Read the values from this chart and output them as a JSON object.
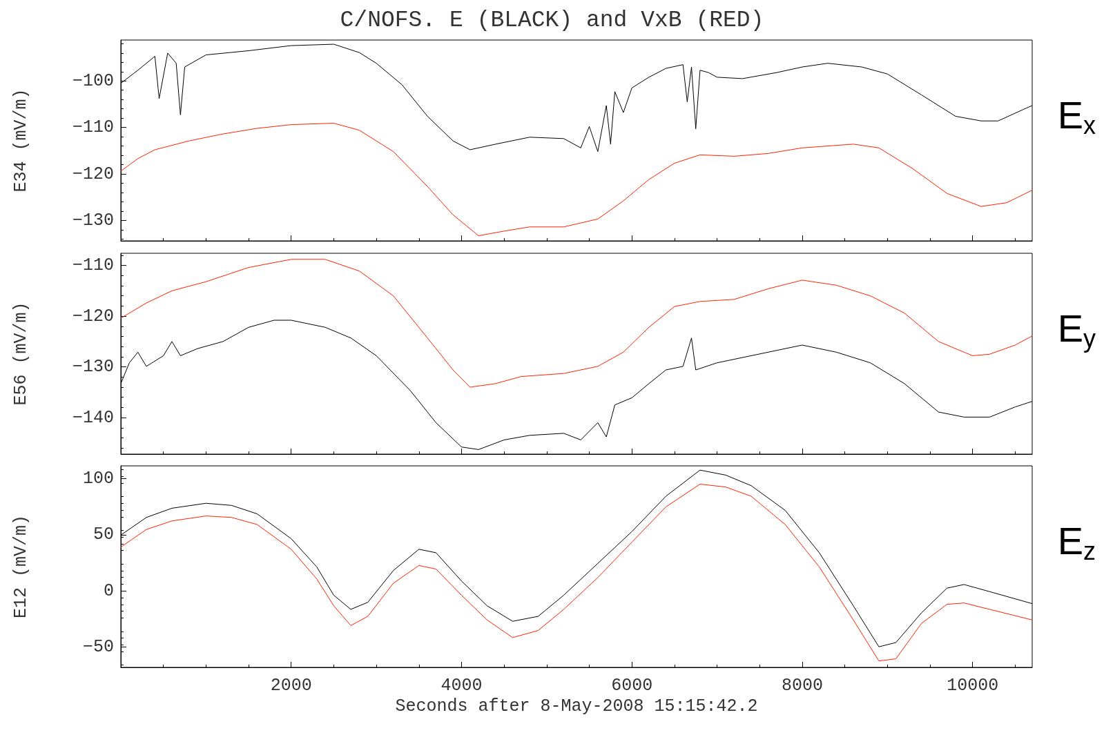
{
  "chart_data": [
    {
      "type": "line",
      "title": "C/NOFS. E (BLACK) and VxB (RED)",
      "ylabel": "E34 (mV/m)",
      "annotations": [
        "E$_{x}$"
      ],
      "xlim": [
        0,
        10700
      ],
      "xticks": [
        2000,
        4000,
        6000,
        8000,
        10000
      ],
      "ylim": [
        -134.4,
        -91.2
      ],
      "yticks": [
        -100,
        -110,
        -120,
        -130
      ],
      "tick_labels": "y",
      "marker": "none",
      "series": [
        {
          "color": "#000000",
          "x": [
            0,
            200,
            400,
            450,
            550,
            650,
            700,
            750,
            1000,
            1500,
            2000,
            2500,
            2800,
            3000,
            3300,
            3600,
            3900,
            4100,
            4400,
            4800,
            5200,
            5400,
            5500,
            5600,
            5700,
            5750,
            5800,
            5900,
            6000,
            6200,
            6400,
            6600,
            6650,
            6700,
            6750,
            6800,
            6900,
            7000,
            7300,
            7700,
            8000,
            8300,
            8700,
            9000,
            9400,
            9800,
            10100,
            10300,
            10600,
            10700
          ],
          "values": [
            -100.5,
            -97.7,
            -94.7,
            -103.8,
            -94,
            -96.2,
            -107.3,
            -97,
            -94.4,
            -93.5,
            -92.4,
            -92.1,
            -93.9,
            -96.2,
            -100.8,
            -107.6,
            -112.9,
            -114.8,
            -113.6,
            -112.1,
            -112.4,
            -114.4,
            -109.8,
            -115.2,
            -105.3,
            -113.6,
            -102.3,
            -106.8,
            -101.5,
            -99.2,
            -97.3,
            -96.5,
            -104.5,
            -97,
            -110.3,
            -97.7,
            -98.2,
            -99.2,
            -99.5,
            -98.2,
            -97,
            -96.2,
            -97,
            -98.5,
            -103,
            -107.6,
            -108.6,
            -108.6,
            -106.1,
            -105.3
          ]
        },
        {
          "color": "#ff2200",
          "x": [
            0,
            200,
            400,
            800,
            1200,
            1600,
            2000,
            2500,
            2800,
            3200,
            3600,
            3900,
            4200,
            4500,
            4800,
            5200,
            5600,
            5900,
            6200,
            6500,
            6800,
            7200,
            7600,
            8000,
            8600,
            8900,
            9300,
            9700,
            10100,
            10400,
            10700
          ],
          "values": [
            -119.4,
            -116.7,
            -114.8,
            -112.9,
            -111.4,
            -110.2,
            -109.4,
            -109.1,
            -110.6,
            -115.2,
            -122.7,
            -128.8,
            -133.3,
            -132.3,
            -131.4,
            -131.4,
            -129.7,
            -125.8,
            -121.2,
            -117.7,
            -115.9,
            -116.2,
            -115.6,
            -114.4,
            -113.6,
            -114.4,
            -118.9,
            -124.2,
            -127,
            -126.2,
            -123.5
          ]
        }
      ]
    },
    {
      "type": "line",
      "ylabel": "E56 (mV/m)",
      "annotations": [
        "E$_{y}$"
      ],
      "xlim": [
        0,
        10700
      ],
      "xticks": [
        2000,
        4000,
        6000,
        8000,
        10000
      ],
      "ylim": [
        -147.2,
        -107.6
      ],
      "yticks": [
        -110,
        -120,
        -130,
        -140
      ],
      "tick_labels": "y",
      "marker": "none",
      "series": [
        {
          "color": "#ff2200",
          "x": [
            0,
            300,
            600,
            1000,
            1500,
            2000,
            2400,
            2800,
            3200,
            3600,
            3900,
            4100,
            4400,
            4700,
            5200,
            5600,
            5900,
            6200,
            6500,
            6800,
            7200,
            7600,
            8000,
            8400,
            8800,
            9200,
            9600,
            10000,
            10200,
            10500,
            10700
          ],
          "values": [
            -120.4,
            -117.4,
            -115,
            -113.2,
            -110.4,
            -108.8,
            -108.8,
            -111.1,
            -116,
            -124.3,
            -130.6,
            -134,
            -133.3,
            -131.9,
            -131.3,
            -129.9,
            -127.1,
            -122.2,
            -118.1,
            -117.1,
            -116.7,
            -114.6,
            -112.9,
            -113.9,
            -116,
            -119.4,
            -125,
            -127.8,
            -127.5,
            -125.7,
            -123.9
          ]
        },
        {
          "color": "#000000",
          "x": [
            0,
            100,
            200,
            300,
            500,
            600,
            700,
            900,
            1200,
            1500,
            1800,
            2000,
            2400,
            2700,
            3000,
            3400,
            3700,
            4000,
            4200,
            4500,
            4800,
            5200,
            5400,
            5600,
            5700,
            5800,
            6000,
            6200,
            6400,
            6600,
            6700,
            6750,
            7000,
            7400,
            8000,
            8400,
            8800,
            9200,
            9600,
            9900,
            10200,
            10500,
            10700
          ],
          "values": [
            -133.3,
            -129.2,
            -127.1,
            -129.9,
            -127.8,
            -125,
            -127.8,
            -126.4,
            -125,
            -122.2,
            -120.8,
            -120.8,
            -122.2,
            -124.3,
            -127.8,
            -134.7,
            -141,
            -145.8,
            -146.3,
            -144.4,
            -143.5,
            -143.1,
            -144.4,
            -141,
            -143.8,
            -137.5,
            -136.1,
            -133.3,
            -130.6,
            -129.9,
            -124.3,
            -130.6,
            -129.2,
            -127.8,
            -125.7,
            -127.1,
            -129.2,
            -133.3,
            -138.9,
            -139.9,
            -139.9,
            -137.9,
            -136.8
          ]
        }
      ]
    },
    {
      "type": "line",
      "ylabel": "E12 (mV/m)",
      "xlabel": "Seconds after 8-May-2008 15:15:42.2",
      "annotations": [
        "E$_{z}$"
      ],
      "xlim": [
        0,
        10700
      ],
      "xticks": [
        2000,
        4000,
        6000,
        8000,
        10000
      ],
      "ylim": [
        -68,
        111.3
      ],
      "yticks": [
        100,
        50,
        0,
        -50
      ],
      "marker": "none",
      "series": [
        {
          "color": "#000000",
          "x": [
            0,
            300,
            600,
            1000,
            1300,
            1600,
            2000,
            2300,
            2500,
            2700,
            2900,
            3200,
            3500,
            3700,
            4000,
            4300,
            4600,
            4900,
            5200,
            5600,
            6000,
            6400,
            6800,
            7100,
            7400,
            7800,
            8200,
            8600,
            8900,
            9100,
            9400,
            9700,
            9900,
            10200,
            10700
          ],
          "values": [
            49.7,
            65.4,
            73.6,
            78,
            76.1,
            68.6,
            46.5,
            21.4,
            -3.8,
            -16.4,
            -10.1,
            18.2,
            37.1,
            34,
            8.8,
            -13.2,
            -27,
            -22.6,
            -3.8,
            24.5,
            52.8,
            84.3,
            107.5,
            103.1,
            93.7,
            71.7,
            34,
            -13.2,
            -49.7,
            -45.9,
            -19.5,
            2.5,
            5.7,
            -0.6,
            -11.3
          ]
        },
        {
          "color": "#ff2200",
          "x": [
            0,
            300,
            600,
            1000,
            1300,
            1600,
            2000,
            2300,
            2500,
            2700,
            2900,
            3200,
            3500,
            3700,
            4000,
            4300,
            4600,
            4900,
            5200,
            5600,
            6000,
            6400,
            6800,
            7100,
            7400,
            7800,
            8200,
            8600,
            8900,
            9100,
            9400,
            9700,
            9900,
            10200,
            10700
          ],
          "values": [
            39,
            54.7,
            62.3,
            66.7,
            65.4,
            59.1,
            37.1,
            10.7,
            -13.2,
            -30.8,
            -22.6,
            6.9,
            22.6,
            19.5,
            -3.8,
            -25.8,
            -41.5,
            -35.2,
            -16.4,
            11.9,
            43.4,
            74.8,
            95,
            92.5,
            84.3,
            59.1,
            21.4,
            -25.8,
            -62.3,
            -60.4,
            -28.9,
            -11.9,
            -10.7,
            -16.4,
            -25.8
          ]
        }
      ]
    }
  ]
}
